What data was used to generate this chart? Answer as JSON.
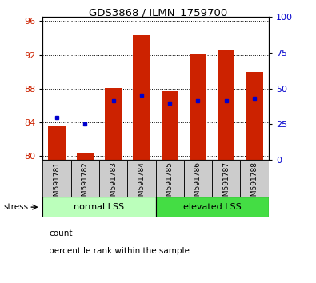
{
  "title": "GDS3868 / ILMN_1759700",
  "samples": [
    "GSM591781",
    "GSM591782",
    "GSM591783",
    "GSM591784",
    "GSM591785",
    "GSM591786",
    "GSM591787",
    "GSM591788"
  ],
  "bar_heights": [
    83.5,
    80.4,
    88.1,
    94.3,
    87.7,
    92.1,
    92.5,
    90.0
  ],
  "blue_dots": [
    84.5,
    83.8,
    86.5,
    87.2,
    86.3,
    86.5,
    86.5,
    86.8
  ],
  "ylim_left": [
    79.5,
    96.5
  ],
  "yticks_left": [
    80,
    84,
    88,
    92,
    96
  ],
  "ylim_right": [
    0,
    100
  ],
  "yticks_right": [
    0,
    25,
    50,
    75,
    100
  ],
  "bar_color": "#cc2200",
  "dot_color": "#0000cc",
  "bar_width": 0.6,
  "group_labels": [
    "normal LSS",
    "elevated LSS"
  ],
  "group_ranges": [
    [
      0,
      3
    ],
    [
      4,
      7
    ]
  ],
  "group_color_light": "#bbffbb",
  "group_color_dark": "#44dd44",
  "stress_label": "stress",
  "legend_items": [
    "count",
    "percentile rank within the sample"
  ],
  "background_color": "#ffffff",
  "tick_label_color_left": "#cc2200",
  "tick_label_color_right": "#0000cc",
  "sample_box_color": "#cccccc"
}
